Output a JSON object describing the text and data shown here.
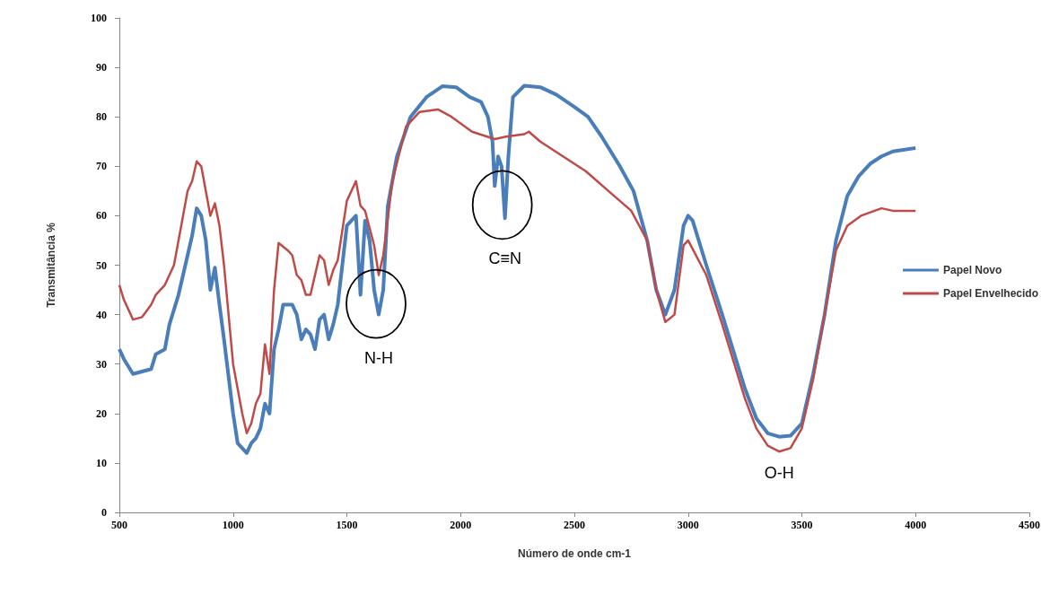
{
  "chart_data": {
    "type": "line",
    "xlabel": "Número de onde cm-1",
    "ylabel": "Transmitância %",
    "xlim": [
      500,
      4500
    ],
    "xticks": [
      500,
      1000,
      1500,
      2000,
      2500,
      3000,
      3500,
      4000,
      4500
    ],
    "ylim": [
      0,
      100
    ],
    "yticks": [
      0,
      10,
      20,
      30,
      40,
      50,
      60,
      70,
      80,
      90,
      100
    ],
    "grid": false,
    "legend": "right",
    "marker": "none",
    "line_style": "solid",
    "annotations": [
      {
        "text": "N-H",
        "x": 1640,
        "y": 40
      },
      {
        "text": "C≡N",
        "x": 2195,
        "y": 60
      },
      {
        "text": "O-H",
        "x": 3400,
        "y": 12
      }
    ],
    "series": [
      {
        "name": "Papel Novo",
        "color": "#4a7ebb",
        "x": [
          500,
          520,
          560,
          600,
          640,
          660,
          700,
          720,
          760,
          800,
          820,
          840,
          860,
          880,
          900,
          920,
          940,
          960,
          1000,
          1020,
          1060,
          1080,
          1100,
          1120,
          1140,
          1160,
          1180,
          1200,
          1220,
          1260,
          1280,
          1300,
          1320,
          1340,
          1360,
          1380,
          1400,
          1420,
          1440,
          1460,
          1500,
          1520,
          1540,
          1560,
          1580,
          1600,
          1620,
          1640,
          1660,
          1680,
          1720,
          1780,
          1850,
          1920,
          1980,
          2040,
          2090,
          2120,
          2140,
          2150,
          2165,
          2180,
          2195,
          2210,
          2230,
          2280,
          2350,
          2420,
          2500,
          2560,
          2620,
          2700,
          2760,
          2820,
          2860,
          2900,
          2940,
          2980,
          3000,
          3020,
          3080,
          3150,
          3250,
          3300,
          3350,
          3400,
          3450,
          3500,
          3550,
          3600,
          3650,
          3700,
          3750,
          3800,
          3850,
          3900,
          4000
        ],
        "values": [
          33,
          31,
          28,
          28.5,
          29,
          32,
          33,
          38,
          44,
          52,
          56,
          61.5,
          60,
          55,
          45,
          49.5,
          42,
          35,
          20,
          14,
          12,
          14,
          15,
          17,
          22,
          20,
          33,
          37,
          42,
          42,
          40,
          35,
          37,
          36,
          33,
          39,
          40,
          35,
          38,
          42,
          58,
          59,
          60,
          44,
          59,
          55,
          45,
          40,
          45,
          62,
          72,
          80,
          84,
          86.2,
          86,
          84,
          83,
          80,
          75,
          66,
          72,
          70,
          59.5,
          72,
          84,
          86.3,
          86,
          84.5,
          82,
          80,
          76,
          70,
          65,
          55,
          45,
          40,
          45,
          58,
          60,
          59,
          50,
          40,
          25,
          19,
          16,
          15.3,
          15.5,
          18,
          28,
          40,
          55,
          64,
          68,
          70.5,
          72,
          73,
          73.7
        ]
      },
      {
        "name": "Papel Envelhecido",
        "color": "#be4b48",
        "x": [
          500,
          520,
          560,
          600,
          640,
          660,
          700,
          740,
          780,
          800,
          820,
          840,
          860,
          880,
          900,
          920,
          940,
          960,
          1000,
          1040,
          1060,
          1080,
          1100,
          1120,
          1140,
          1160,
          1180,
          1200,
          1240,
          1260,
          1280,
          1300,
          1320,
          1340,
          1360,
          1380,
          1400,
          1420,
          1440,
          1460,
          1500,
          1540,
          1560,
          1580,
          1620,
          1640,
          1660,
          1700,
          1760,
          1820,
          1900,
          1960,
          2050,
          2150,
          2200,
          2280,
          2300,
          2350,
          2450,
          2550,
          2650,
          2750,
          2820,
          2860,
          2900,
          2940,
          2980,
          3000,
          3080,
          3150,
          3250,
          3300,
          3350,
          3400,
          3450,
          3500,
          3550,
          3600,
          3650,
          3700,
          3760,
          3850,
          3900,
          4000
        ],
        "values": [
          46,
          43,
          39,
          39.5,
          42,
          44,
          46,
          50,
          60,
          65,
          67,
          71,
          70,
          65,
          60,
          62.5,
          58,
          50,
          30,
          20,
          16,
          18,
          22,
          24,
          34,
          28,
          45,
          54.5,
          53,
          52,
          48,
          47,
          44,
          44,
          48,
          52,
          51,
          46,
          49,
          51,
          63,
          67,
          62,
          61,
          54,
          48,
          52,
          67,
          78,
          81,
          81.5,
          80,
          77,
          75.5,
          76,
          76.5,
          77,
          75,
          72,
          69,
          65,
          61,
          55,
          45,
          38.5,
          40,
          54,
          55,
          48,
          38,
          23,
          17,
          13.5,
          12.3,
          13,
          17,
          27,
          40,
          53,
          58,
          60,
          61.5,
          61,
          61
        ]
      }
    ]
  }
}
